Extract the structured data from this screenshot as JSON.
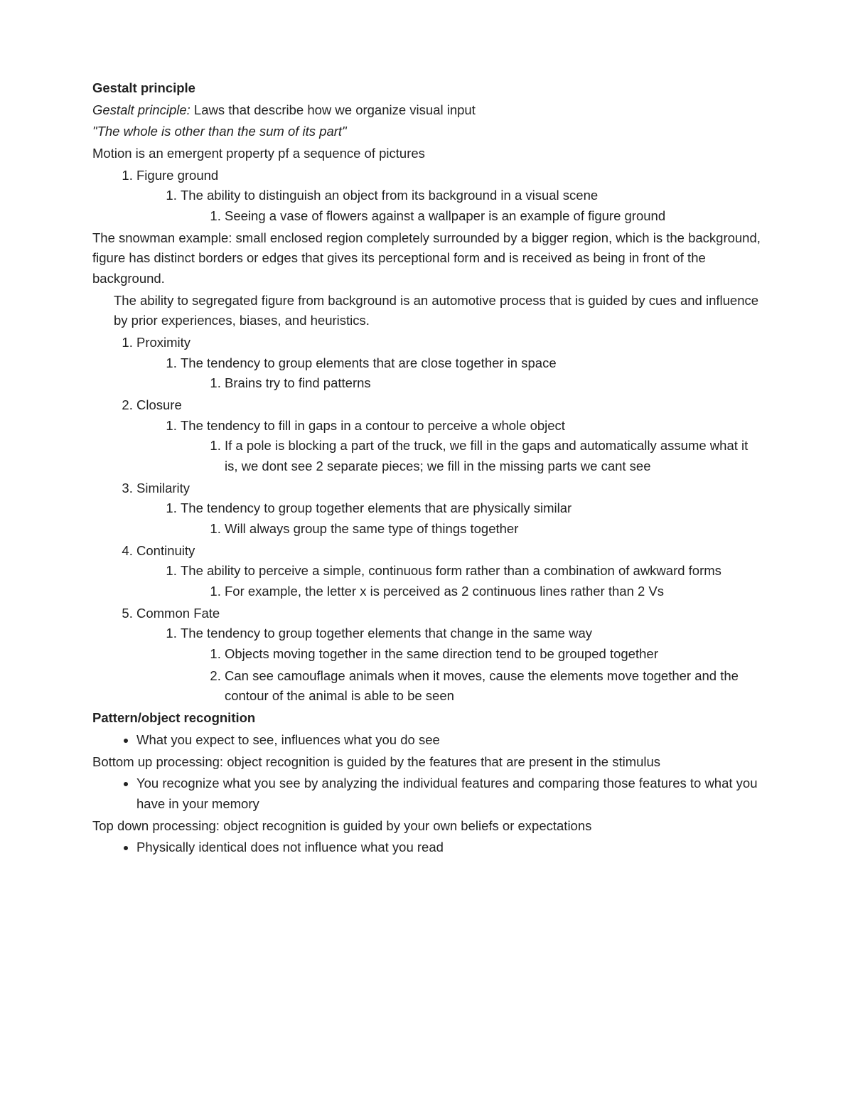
{
  "h1": "Gestalt principle",
  "def_term": "Gestalt principle:",
  "def_text": " Laws that describe how we organize visual input",
  "quote": "\"The whole is other than the sum of its part\"",
  "motion": "Motion is an emergent property pf a sequence of pictures",
  "figground": {
    "label": "Figure ground",
    "sub1": "The ability to distinguish an object from its background in a visual scene",
    "sub1a": "Seeing a vase of flowers against a wallpaper is an example of figure ground"
  },
  "snowman": "The snowman example: small enclosed region completely surrounded by a bigger region, which is the background, figure has distinct borders or edges that gives its perceptional form and is received as being in front of the background.",
  "ability": "The ability to segregated figure from background is an automotive process that is guided by cues and influence by prior experiences, biases, and heuristics.",
  "proximity": {
    "label": "Proximity",
    "sub1": "The tendency to group elements that are close together in space",
    "sub1a": "Brains try to find patterns"
  },
  "closure": {
    "label": "Closure",
    "sub1": "The tendency to fill in gaps in a contour to perceive a whole object",
    "sub1a": "If a pole is blocking a part of the truck, we fill in the gaps and automatically assume what it is, we dont see 2 separate pieces; we fill in the missing parts we cant see"
  },
  "similarity": {
    "label": "Similarity",
    "sub1": "The tendency to group together elements that are physically similar",
    "sub1a": "Will always group the same type of things together"
  },
  "continuity": {
    "label": "Continuity",
    "sub1": "The ability to perceive a simple, continuous form rather than a combination of awkward forms",
    "sub1a": "For example, the letter x is perceived as 2 continuous lines rather than 2 Vs"
  },
  "commonfate": {
    "label": "Common Fate",
    "sub1": "The tendency to group together elements that change in the same way",
    "sub1a": "Objects moving together in the same direction tend to be grouped together",
    "sub1b": "Can see camouflage animals when it moves, cause the elements move together and the contour of the animal is able to be seen"
  },
  "h2": "Pattern/object recognition",
  "pattern_b1": "What you expect to see, influences what you do see",
  "bottomup": "Bottom up processing: object recognition is guided by the features that are present in the stimulus",
  "bottomup_b1": "You recognize what you see by analyzing the individual features and comparing those features to what you have in your memory",
  "topdown": "Top down processing: object recognition is guided by your own beliefs or expectations",
  "topdown_b1": "Physically identical does not influence what you read"
}
